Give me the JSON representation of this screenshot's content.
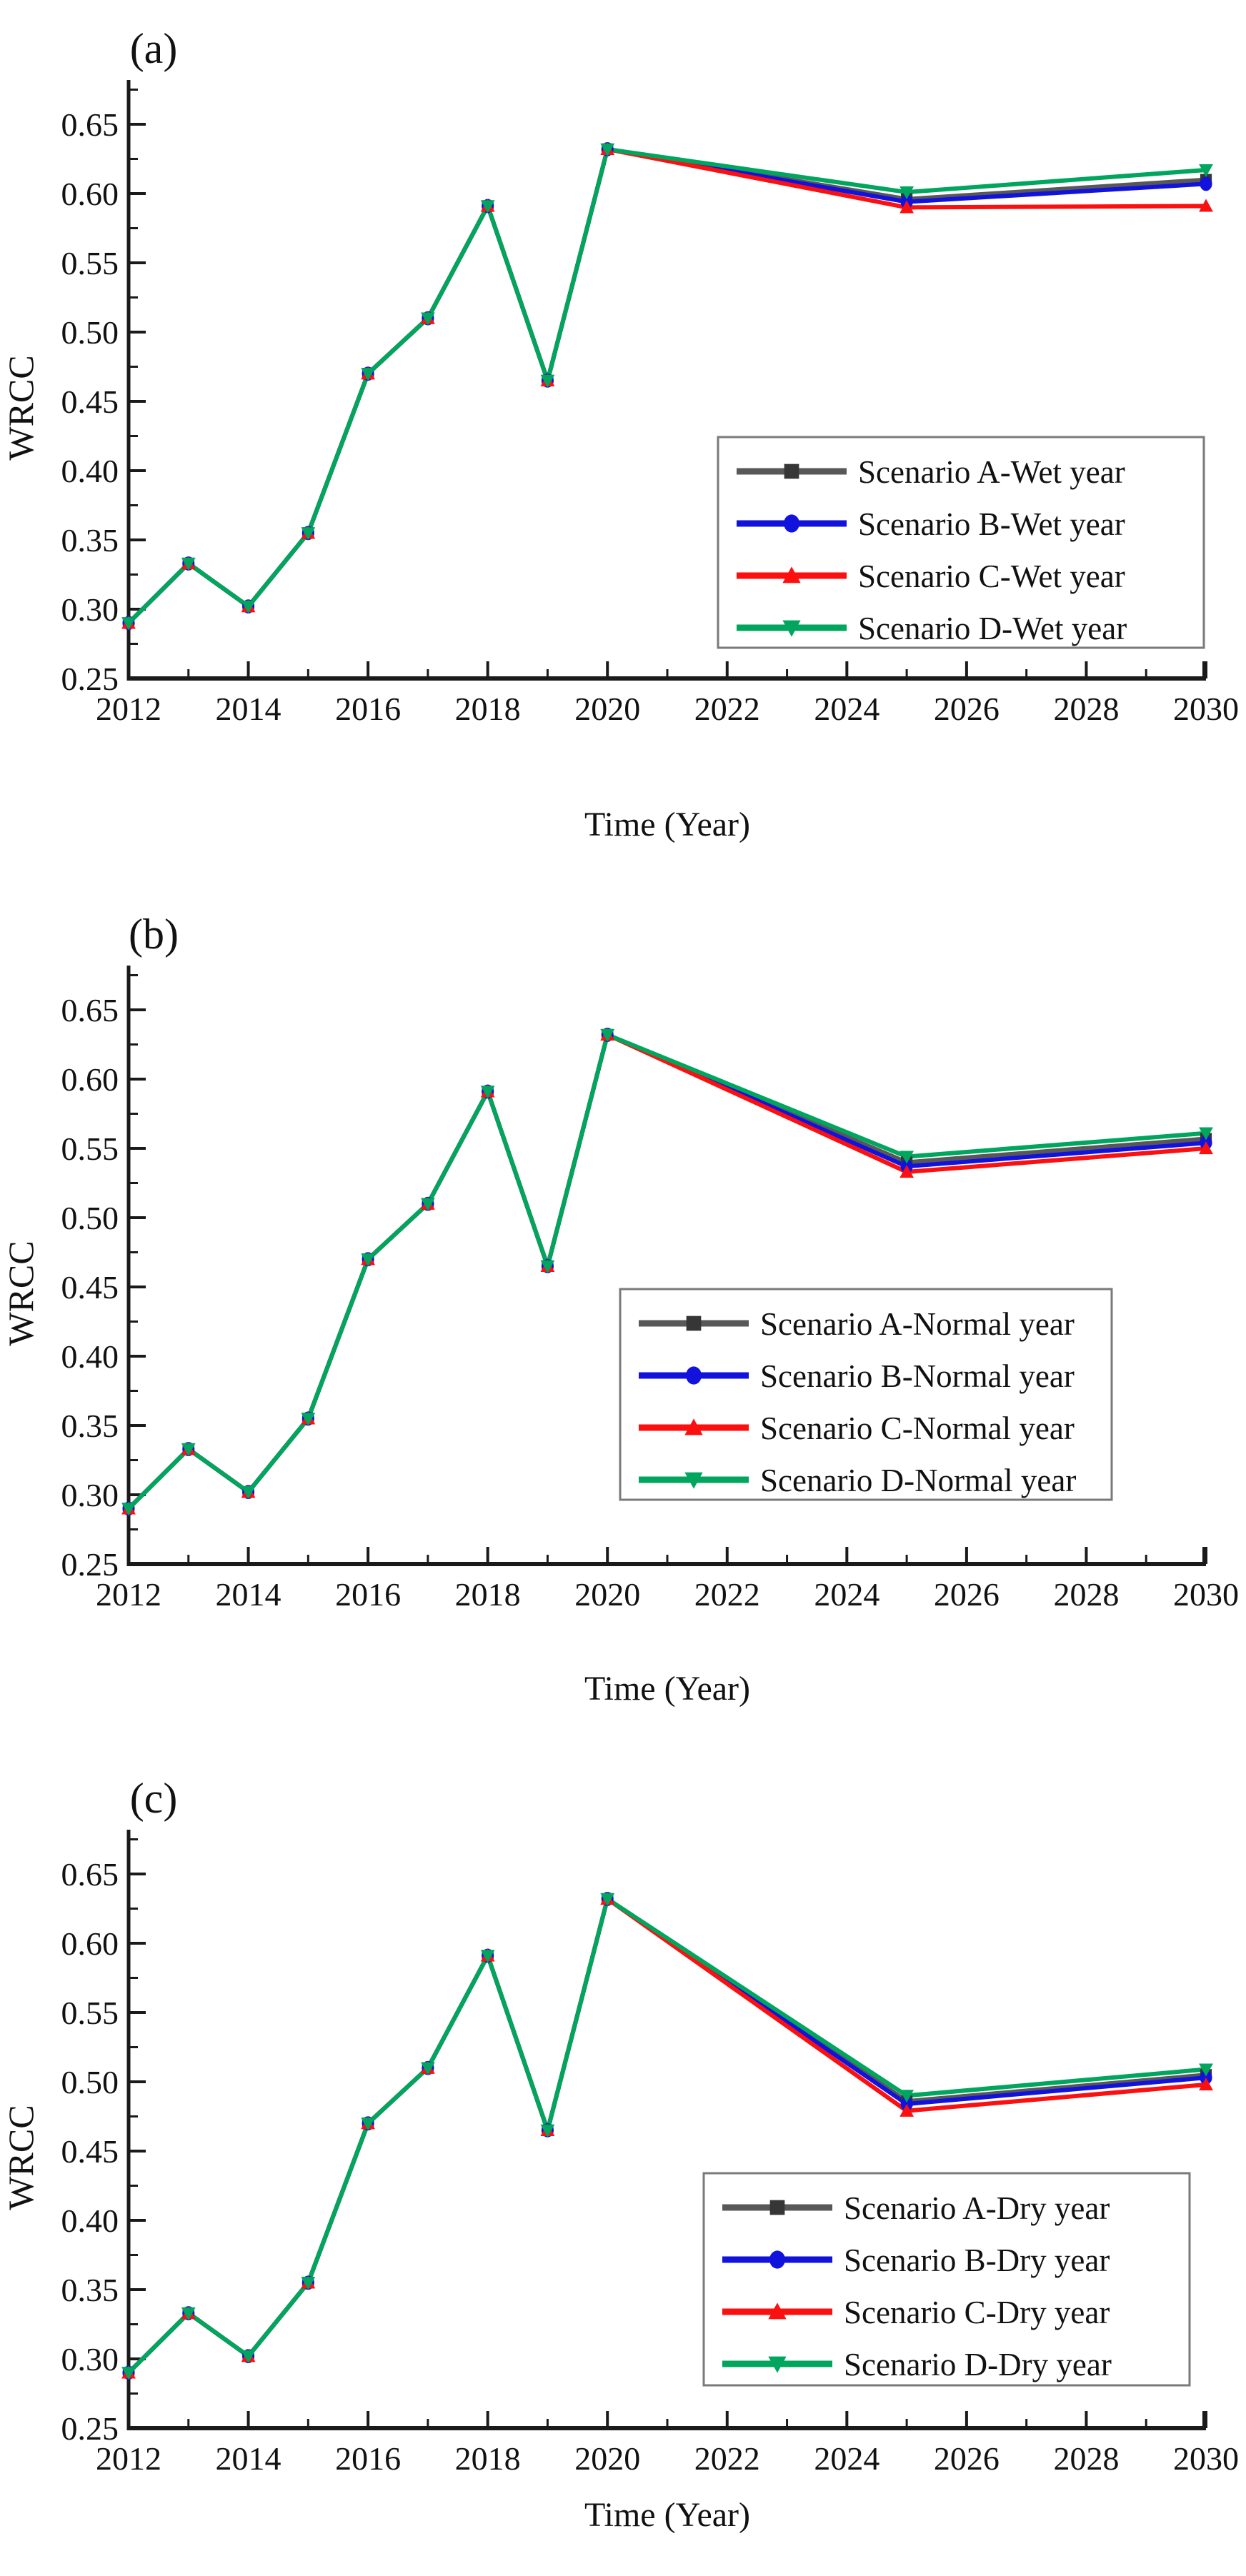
{
  "figure": {
    "description": "Three stacked line charts of WRCC projections under four scenarios",
    "panels": [
      {
        "panel_label": "(a)",
        "ylabel": "WRCC",
        "xlabel": "Time (Year)",
        "legend": [
          "Scenario A-Wet year",
          "Scenario B-Wet year",
          "Scenario C-Wet year",
          "Scenario D-Wet year"
        ]
      },
      {
        "panel_label": "(b)",
        "ylabel": "WRCC",
        "xlabel": "Time (Year)",
        "legend": [
          "Scenario A-Normal year",
          "Scenario B-Normal year",
          "Scenario C-Normal year",
          "Scenario D-Normal year"
        ]
      },
      {
        "panel_label": "(c)",
        "ylabel": "WRCC",
        "xlabel": "Time (Year)",
        "legend": [
          "Scenario A-Dry year",
          "Scenario B-Dry year",
          "Scenario C-Dry year",
          "Scenario D-Dry year"
        ]
      }
    ],
    "colors": {
      "scenario_a_line": "#585858",
      "scenario_a_marker": "#363636",
      "scenario_b": "#1212dd",
      "scenario_c": "#fb0f0f",
      "scenario_d": "#00a55e",
      "axis": "#1a1a1a",
      "legend_border": "#7a7a7a",
      "text": "#111111"
    }
  },
  "chart_data": [
    {
      "type": "line",
      "panel": "(a)",
      "xlabel": "Time (Year)",
      "ylabel": "WRCC",
      "x": [
        2012,
        2013,
        2014,
        2015,
        2016,
        2017,
        2018,
        2019,
        2020,
        2025,
        2030
      ],
      "xlim": [
        2012,
        2030
      ],
      "ylim": [
        0.25,
        0.68
      ],
      "x_major_ticks": [
        2012,
        2014,
        2016,
        2018,
        2020,
        2022,
        2024,
        2026,
        2028,
        2030
      ],
      "y_major_ticks": [
        "0.25",
        "0.30",
        "0.35",
        "0.40",
        "0.45",
        "0.50",
        "0.55",
        "0.60",
        "0.65"
      ],
      "grid": false,
      "legend_position": "center-right",
      "series": [
        {
          "name": "Scenario A-Wet year",
          "marker": "square",
          "values": [
            0.29,
            0.333,
            0.302,
            0.355,
            0.47,
            0.51,
            0.591,
            0.465,
            0.632,
            0.596,
            0.61
          ]
        },
        {
          "name": "Scenario B-Wet year",
          "marker": "circle",
          "values": [
            0.29,
            0.333,
            0.302,
            0.355,
            0.47,
            0.51,
            0.591,
            0.465,
            0.632,
            0.594,
            0.607
          ]
        },
        {
          "name": "Scenario C-Wet year",
          "marker": "triangle-up",
          "values": [
            0.29,
            0.333,
            0.302,
            0.355,
            0.47,
            0.51,
            0.591,
            0.465,
            0.632,
            0.59,
            0.591
          ]
        },
        {
          "name": "Scenario D-Wet year",
          "marker": "triangle-down",
          "values": [
            0.29,
            0.333,
            0.302,
            0.355,
            0.47,
            0.51,
            0.591,
            0.465,
            0.632,
            0.601,
            0.617
          ]
        }
      ]
    },
    {
      "type": "line",
      "panel": "(b)",
      "xlabel": "Time (Year)",
      "ylabel": "WRCC",
      "x": [
        2012,
        2013,
        2014,
        2015,
        2016,
        2017,
        2018,
        2019,
        2020,
        2025,
        2030
      ],
      "xlim": [
        2012,
        2030
      ],
      "ylim": [
        0.25,
        0.68
      ],
      "x_major_ticks": [
        2012,
        2014,
        2016,
        2018,
        2020,
        2022,
        2024,
        2026,
        2028,
        2030
      ],
      "y_major_ticks": [
        "0.25",
        "0.30",
        "0.35",
        "0.40",
        "0.45",
        "0.50",
        "0.55",
        "0.60",
        "0.65"
      ],
      "grid": false,
      "legend_position": "bottom-right",
      "series": [
        {
          "name": "Scenario A-Normal year",
          "marker": "square",
          "values": [
            0.29,
            0.333,
            0.302,
            0.355,
            0.47,
            0.51,
            0.591,
            0.465,
            0.632,
            0.54,
            0.557
          ]
        },
        {
          "name": "Scenario B-Normal year",
          "marker": "circle",
          "values": [
            0.29,
            0.333,
            0.302,
            0.355,
            0.47,
            0.51,
            0.591,
            0.465,
            0.632,
            0.537,
            0.554
          ]
        },
        {
          "name": "Scenario C-Normal year",
          "marker": "triangle-up",
          "values": [
            0.29,
            0.333,
            0.302,
            0.355,
            0.47,
            0.51,
            0.591,
            0.465,
            0.632,
            0.533,
            0.55
          ]
        },
        {
          "name": "Scenario D-Normal year",
          "marker": "triangle-down",
          "values": [
            0.29,
            0.333,
            0.302,
            0.355,
            0.47,
            0.51,
            0.591,
            0.465,
            0.632,
            0.544,
            0.561
          ]
        }
      ]
    },
    {
      "type": "line",
      "panel": "(c)",
      "xlabel": "Time (Year)",
      "ylabel": "WRCC",
      "x": [
        2012,
        2013,
        2014,
        2015,
        2016,
        2017,
        2018,
        2019,
        2020,
        2025,
        2030
      ],
      "xlim": [
        2012,
        2030
      ],
      "ylim": [
        0.25,
        0.68
      ],
      "x_major_ticks": [
        2012,
        2014,
        2016,
        2018,
        2020,
        2022,
        2024,
        2026,
        2028,
        2030
      ],
      "y_major_ticks": [
        "0.25",
        "0.30",
        "0.35",
        "0.40",
        "0.45",
        "0.50",
        "0.55",
        "0.60",
        "0.65"
      ],
      "grid": false,
      "legend_position": "bottom-right",
      "series": [
        {
          "name": "Scenario A-Dry year",
          "marker": "square",
          "values": [
            0.29,
            0.333,
            0.302,
            0.355,
            0.47,
            0.51,
            0.591,
            0.465,
            0.632,
            0.486,
            0.505
          ]
        },
        {
          "name": "Scenario B-Dry year",
          "marker": "circle",
          "values": [
            0.29,
            0.333,
            0.302,
            0.355,
            0.47,
            0.51,
            0.591,
            0.465,
            0.632,
            0.484,
            0.503
          ]
        },
        {
          "name": "Scenario C-Dry year",
          "marker": "triangle-up",
          "values": [
            0.29,
            0.333,
            0.302,
            0.355,
            0.47,
            0.51,
            0.591,
            0.465,
            0.632,
            0.479,
            0.498
          ]
        },
        {
          "name": "Scenario D-Dry year",
          "marker": "triangle-down",
          "values": [
            0.29,
            0.333,
            0.302,
            0.355,
            0.47,
            0.51,
            0.591,
            0.465,
            0.632,
            0.49,
            0.509
          ]
        }
      ]
    }
  ]
}
